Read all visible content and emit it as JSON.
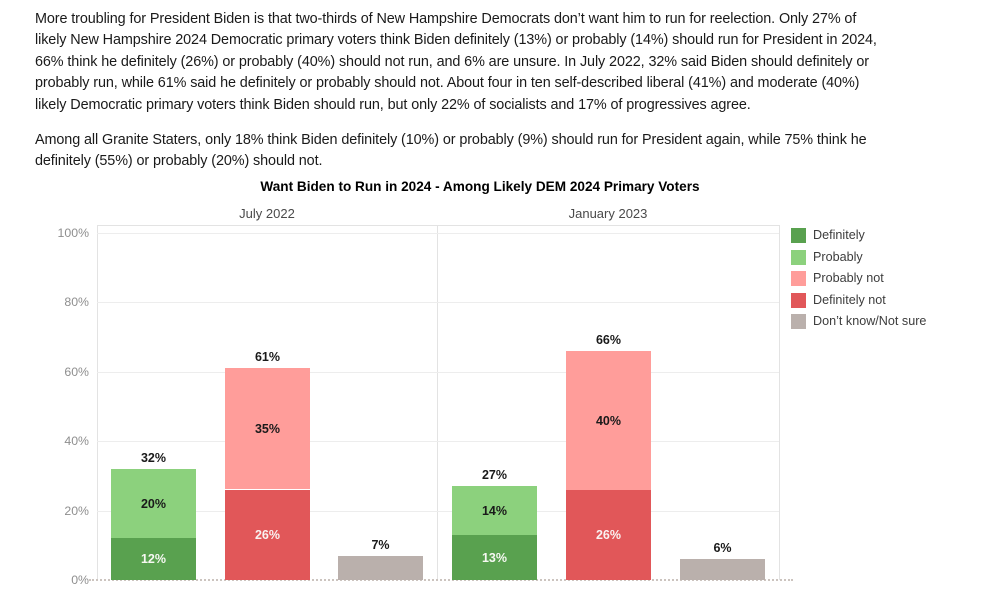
{
  "paragraphs": [
    {
      "lines": [
        "More troubling for President Biden is that two-thirds of New Hampshire Democrats don’t want him to run for reelection. Only 27% of",
        "likely New Hampshire 2024 Democratic primary voters think Biden definitely (13%) or probably (14%) should run for President in 2024,",
        "66% think he definitely (26%) or probably (40%) should not run, and 6% are unsure. In July 2022, 32% said Biden should definitely or",
        "probably run, while 61% said he definitely or probably should not. About four in ten self-described liberal (41%) and moderate (40%)",
        "likely Democratic primary voters think Biden should run, but only 22% of socialists and 17% of progressives agree."
      ]
    },
    {
      "lines": [
        "Among all Granite Staters, only 18% think Biden definitely (10%) or probably (9%) should run for President again, while 75% think he",
        "definitely (55%) or probably (20%) should not."
      ]
    }
  ],
  "chart_data": {
    "type": "bar",
    "stacked": true,
    "title": "Want Biden to Run in 2024 - Among Likely DEM 2024 Primary Voters",
    "grid": true,
    "legend_position": "right",
    "y_axis": {
      "max": 100,
      "ticks": [
        {
          "value": 0,
          "label": "0%"
        },
        {
          "value": 20,
          "label": "20%"
        },
        {
          "value": 40,
          "label": "40%"
        },
        {
          "value": 60,
          "label": "60%"
        },
        {
          "value": 80,
          "label": "80%"
        },
        {
          "value": 100,
          "label": "100%"
        }
      ]
    },
    "legend": [
      {
        "label": "Definitely",
        "color": "#59a14f",
        "label_color": "#f6f8f2"
      },
      {
        "label": "Probably",
        "color": "#8cd17d",
        "label_color": "#1a1a1a"
      },
      {
        "label": "Probably not",
        "color": "#ff9d9a",
        "label_color": "#1a1a1a"
      },
      {
        "label": "Definitely not",
        "color": "#e15759",
        "label_color": "#f9f2f1"
      },
      {
        "label": "Don’t know/Not sure",
        "color": "#bab0ac",
        "label_color": "#1a1a1a"
      }
    ],
    "panels": [
      {
        "label": "July 2022",
        "bars": [
          {
            "total": 32,
            "total_label": "32%",
            "segments": [
              {
                "name": "Definitely",
                "value": 12,
                "label": "12%"
              },
              {
                "name": "Probably",
                "value": 20,
                "label": "20%"
              }
            ]
          },
          {
            "total": 61,
            "total_label": "61%",
            "segments": [
              {
                "name": "Definitely not",
                "value": 26,
                "label": "26%"
              },
              {
                "name": "Probably not",
                "value": 35,
                "label": "35%"
              }
            ]
          },
          {
            "total": 7,
            "total_label": "7%",
            "segments": [
              {
                "name": "Don’t know/Not sure",
                "value": 7,
                "label": "",
                "show_label": false
              }
            ]
          }
        ]
      },
      {
        "label": "January 2023",
        "bars": [
          {
            "total": 27,
            "total_label": "27%",
            "segments": [
              {
                "name": "Definitely",
                "value": 13,
                "label": "13%"
              },
              {
                "name": "Probably",
                "value": 14,
                "label": "14%"
              }
            ]
          },
          {
            "total": 66,
            "total_label": "66%",
            "segments": [
              {
                "name": "Definitely not",
                "value": 26,
                "label": "26%"
              },
              {
                "name": "Probably not",
                "value": 40,
                "label": "40%"
              }
            ]
          },
          {
            "total": 6,
            "total_label": "6%",
            "segments": [
              {
                "name": "Don’t know/Not sure",
                "value": 6,
                "label": "",
                "show_label": false
              }
            ]
          }
        ]
      }
    ]
  }
}
